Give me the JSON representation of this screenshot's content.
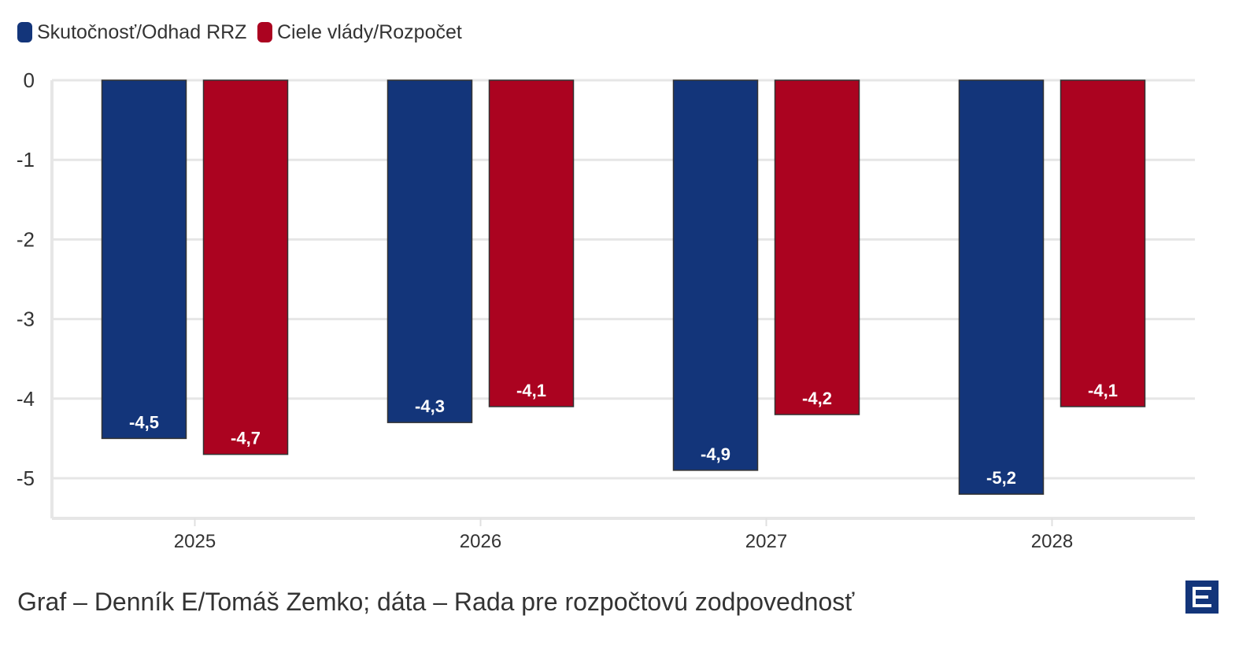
{
  "chart_data": {
    "type": "bar",
    "categories": [
      "2025",
      "2026",
      "2027",
      "2028"
    ],
    "series": [
      {
        "name": "Skutočnosť/Odhad RRZ",
        "values": [
          -4.5,
          -4.3,
          -4.9,
          -5.2
        ],
        "labels": [
          "-4,5",
          "-4,3",
          "-4,9",
          "-5,2"
        ]
      },
      {
        "name": "Ciele vlády/Rozpočet",
        "values": [
          -4.7,
          -4.1,
          -4.2,
          -4.1
        ],
        "labels": [
          "-4,7",
          "-4,1",
          "-4,2",
          "-4,1"
        ]
      }
    ],
    "colors": [
      "#13357a",
      "#ab0320"
    ],
    "title": "",
    "xlabel": "",
    "ylabel": "",
    "ylim": [
      -5.5,
      0
    ],
    "yticks": [
      0,
      -1,
      -2,
      -3,
      -4,
      -5
    ],
    "ytick_labels": [
      "0",
      "-1",
      "-2",
      "-3",
      "-4",
      "-5"
    ],
    "grid": true,
    "legend_position": "top-left"
  },
  "source": "Graf – Denník E/Tomáš Zemko; dáta – Rada pre rozpočtovú zodpovednosť",
  "logo_icon": "denník-e-logo-icon"
}
